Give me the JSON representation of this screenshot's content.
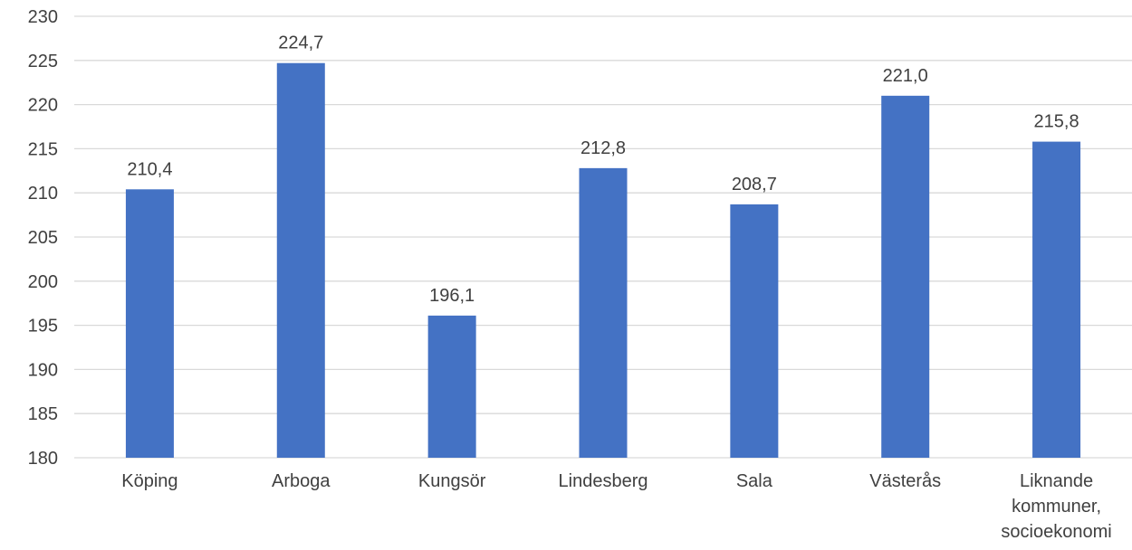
{
  "chart_data": {
    "type": "bar",
    "categories": [
      [
        "Köping"
      ],
      [
        "Arboga"
      ],
      [
        "Kungsör"
      ],
      [
        "Lindesberg"
      ],
      [
        "Sala"
      ],
      [
        "Västerås"
      ],
      [
        "Liknande",
        "kommuner,",
        "socioekonomi"
      ]
    ],
    "values": [
      210.4,
      224.7,
      196.1,
      212.8,
      208.7,
      221.0,
      215.8
    ],
    "data_labels": [
      "210,4",
      "224,7",
      "196,1",
      "212,8",
      "208,7",
      "221,0",
      "215,8"
    ],
    "yticks": [
      "180",
      "185",
      "190",
      "195",
      "200",
      "205",
      "210",
      "215",
      "220",
      "225",
      "230"
    ],
    "ylim": [
      180,
      230
    ],
    "title": "",
    "xlabel": "",
    "ylabel": "",
    "grid": true,
    "legend": "none",
    "colors": {
      "bar": "#4472C4",
      "grid": "#D9D9D9",
      "text": "#404040"
    }
  }
}
